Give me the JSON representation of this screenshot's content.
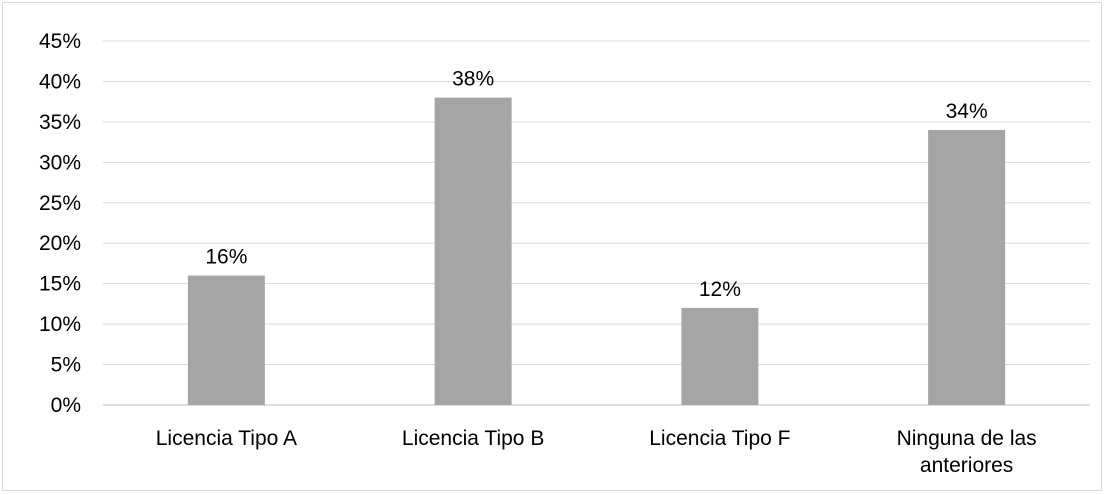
{
  "chart_data": {
    "type": "bar",
    "categories": [
      [
        "Licencia Tipo A"
      ],
      [
        "Licencia Tipo B"
      ],
      [
        "Licencia Tipo F"
      ],
      [
        "Ninguna de las",
        "anteriores"
      ]
    ],
    "values": [
      16,
      38,
      12,
      34
    ],
    "data_labels": [
      "16%",
      "38%",
      "12%",
      "34%"
    ],
    "ylim": [
      0,
      45
    ],
    "y_ticks": [
      0,
      5,
      10,
      15,
      20,
      25,
      30,
      35,
      40,
      45
    ],
    "y_tick_labels": [
      "0%",
      "5%",
      "10%",
      "15%",
      "20%",
      "25%",
      "30%",
      "35%",
      "40%",
      "45%"
    ],
    "title": "",
    "xlabel": "",
    "ylabel": "",
    "grid": true,
    "legend": "none",
    "colors": {
      "bar": "#a5a5a5",
      "grid": "#d9d9d9",
      "axis": "#bfbfbf",
      "text": "#000000"
    }
  }
}
